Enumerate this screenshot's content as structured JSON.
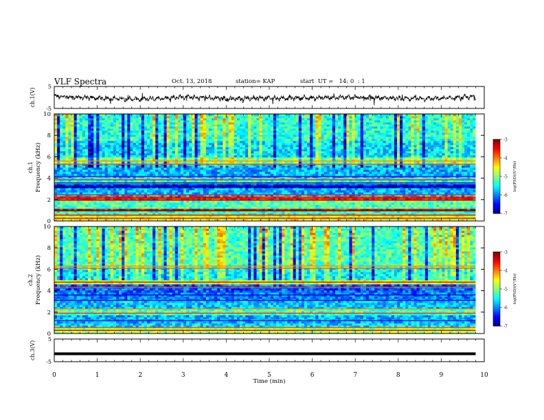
{
  "header": {
    "title": "VLF Spectra",
    "date": "Oct. 13, 2018",
    "station": "station= KAP",
    "start": "start  UT =   14: 0  : 1"
  },
  "chart_data": [
    {
      "type": "line",
      "panel": "ch1-waveform",
      "ylabel": "ch.1(V)",
      "ylim": [
        -5,
        5
      ],
      "yticks": [
        "5",
        "-5"
      ],
      "xlim": [
        0,
        10
      ],
      "description_of_trace": "noisy waveform hovering near 0 V from 0 to 9.8 min",
      "x": [
        0,
        1,
        2,
        3,
        4,
        5,
        6,
        7,
        8,
        9,
        9.8
      ],
      "y": [
        0.5,
        -0.3,
        -0.8,
        0.2,
        -0.6,
        -0.3,
        -0.2,
        0.1,
        -0.4,
        -0.5,
        0.3
      ]
    },
    {
      "type": "heatmap",
      "panel": "ch1-spectrogram",
      "ylabel_lines": [
        "ch.1",
        "Frequency (kHz)"
      ],
      "ylim": [
        0,
        10
      ],
      "yticks": [
        "0",
        "2",
        "4",
        "6",
        "8",
        "10"
      ],
      "xlim": [
        0,
        9.8
      ],
      "colorbar": {
        "label": "log(PSD)(V²/Hz)",
        "range": [
          -7,
          -3
        ],
        "ticks": [
          "-3",
          "-4",
          "-5",
          "-6",
          "-7"
        ]
      }
    },
    {
      "type": "heatmap",
      "panel": "ch2-spectrogram",
      "ylabel_lines": [
        "ch.2",
        "Frequency (kHz)"
      ],
      "ylim": [
        0,
        10
      ],
      "yticks": [
        "0",
        "2",
        "4",
        "6",
        "8",
        "10"
      ],
      "xlim": [
        0,
        9.8
      ],
      "colorbar": {
        "label": "log(PSD)(V²/Hz)",
        "range": [
          -7,
          -3
        ],
        "ticks": [
          "-3",
          "-4",
          "-5",
          "-6",
          "-7"
        ]
      }
    },
    {
      "type": "line",
      "panel": "ch3-waveform",
      "ylabel": "ch.3(V)",
      "ylim": [
        -5,
        5
      ],
      "yticks": [
        "5",
        "-5"
      ],
      "xlim": [
        0,
        10
      ],
      "x": [
        0,
        9.8
      ],
      "y": [
        -1.5,
        -1.5
      ]
    }
  ],
  "xaxis": {
    "label": "Time  (min)",
    "ticks": [
      "0",
      "1",
      "2",
      "3",
      "4",
      "5",
      "6",
      "7",
      "8",
      "9",
      "10"
    ]
  }
}
